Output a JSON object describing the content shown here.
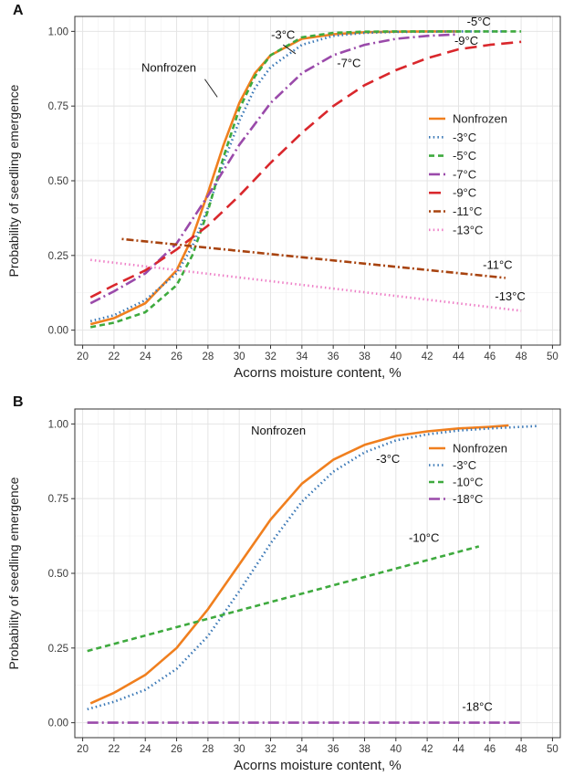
{
  "chart_data": [
    {
      "panel_label": "A",
      "type": "line",
      "xlabel": "Acorns moisture content, %",
      "ylabel": "Probability of seedling emergence",
      "xlim": [
        19.5,
        50.5
      ],
      "ylim": [
        -0.05,
        1.05
      ],
      "xticks": [
        20,
        22,
        24,
        26,
        28,
        30,
        32,
        34,
        36,
        38,
        40,
        42,
        44,
        46,
        48,
        50
      ],
      "yticks": [
        0.0,
        0.25,
        0.5,
        0.75,
        1.0
      ],
      "ytick_labels": [
        "0.00",
        "0.25",
        "0.50",
        "0.75",
        "1.00"
      ],
      "grid": true,
      "legend_position": "right",
      "series": [
        {
          "name": "Nonfrozen",
          "color": "#f07f1e",
          "dash": "solid",
          "x": [
            20.5,
            22,
            24,
            26,
            27,
            28,
            29,
            30,
            31,
            32,
            34,
            36,
            38,
            40,
            42,
            44
          ],
          "y": [
            0.02,
            0.04,
            0.09,
            0.2,
            0.31,
            0.46,
            0.62,
            0.76,
            0.86,
            0.92,
            0.975,
            0.99,
            0.997,
            0.999,
            1.0,
            1.0
          ]
        },
        {
          "name": "-3°C",
          "color": "#3a78b6",
          "dash": "dotted",
          "x": [
            20.5,
            22,
            24,
            26,
            27,
            28,
            29,
            30,
            31,
            32,
            34,
            36,
            38,
            40,
            42,
            44,
            46,
            47
          ],
          "y": [
            0.03,
            0.05,
            0.1,
            0.19,
            0.28,
            0.41,
            0.56,
            0.7,
            0.81,
            0.88,
            0.955,
            0.985,
            0.995,
            0.998,
            0.999,
            1.0,
            1.0,
            1.0
          ]
        },
        {
          "name": "-5°C",
          "color": "#3eaa3e",
          "dash": "dashed",
          "x": [
            20.5,
            22,
            24,
            26,
            27,
            28,
            29,
            30,
            31,
            32,
            34,
            36,
            38,
            40,
            42,
            44,
            46,
            48
          ],
          "y": [
            0.01,
            0.025,
            0.06,
            0.15,
            0.25,
            0.4,
            0.58,
            0.74,
            0.85,
            0.92,
            0.98,
            0.995,
            0.999,
            1.0,
            1.0,
            1.0,
            1.0,
            1.0
          ]
        },
        {
          "name": "-7°C",
          "color": "#9a4aaa",
          "dash": "dashdot",
          "x": [
            20.5,
            22,
            24,
            26,
            28,
            30,
            32,
            34,
            36,
            38,
            40,
            42,
            44
          ],
          "y": [
            0.09,
            0.13,
            0.19,
            0.29,
            0.45,
            0.62,
            0.76,
            0.86,
            0.92,
            0.955,
            0.975,
            0.985,
            0.99
          ]
        },
        {
          "name": "-9°C",
          "color": "#d9272c",
          "dash": "longdash",
          "x": [
            20.5,
            22,
            24,
            26,
            28,
            30,
            32,
            34,
            36,
            38,
            40,
            42,
            44,
            46,
            48
          ],
          "y": [
            0.11,
            0.15,
            0.2,
            0.27,
            0.35,
            0.45,
            0.56,
            0.66,
            0.75,
            0.82,
            0.87,
            0.91,
            0.94,
            0.955,
            0.965
          ]
        },
        {
          "name": "-11°C",
          "color": "#a8430f",
          "dash": "dotdash",
          "x": [
            22.5,
            47
          ],
          "y": [
            0.305,
            0.175
          ]
        },
        {
          "name": "-13°C",
          "color": "#ee7fc7",
          "dash": "dotted",
          "x": [
            20.5,
            48
          ],
          "y": [
            0.235,
            0.065
          ]
        }
      ],
      "annotations": [
        {
          "text": "-3°C",
          "x": 32.8,
          "y": 0.975
        },
        {
          "text": "-5°C",
          "x": 45.3,
          "y": 1.02
        },
        {
          "text": "-9°C",
          "x": 44.5,
          "y": 0.955
        },
        {
          "text": "-7°C",
          "x": 37.0,
          "y": 0.88
        },
        {
          "text": "Nonfrozen",
          "x": 25.5,
          "y": 0.865
        },
        {
          "text": "-11°C",
          "x": 46.5,
          "y": 0.205
        },
        {
          "text": "-13°C",
          "x": 47.3,
          "y": 0.1
        }
      ]
    },
    {
      "panel_label": "B",
      "type": "line",
      "xlabel": "Acorns moisture content, %",
      "ylabel": "Probability of seedling emergence",
      "xlim": [
        19.5,
        50.5
      ],
      "ylim": [
        -0.05,
        1.05
      ],
      "xticks": [
        20,
        22,
        24,
        26,
        28,
        30,
        32,
        34,
        36,
        38,
        40,
        42,
        44,
        46,
        48,
        50
      ],
      "yticks": [
        0.0,
        0.25,
        0.5,
        0.75,
        1.0
      ],
      "ytick_labels": [
        "0.00",
        "0.25",
        "0.50",
        "0.75",
        "1.00"
      ],
      "grid": true,
      "legend_position": "right",
      "series": [
        {
          "name": "Nonfrozen",
          "color": "#f07f1e",
          "dash": "solid",
          "x": [
            20.5,
            22,
            24,
            26,
            28,
            30,
            32,
            34,
            36,
            38,
            40,
            42,
            44,
            46,
            47.2
          ],
          "y": [
            0.065,
            0.1,
            0.16,
            0.25,
            0.38,
            0.53,
            0.68,
            0.8,
            0.88,
            0.93,
            0.96,
            0.975,
            0.985,
            0.99,
            0.995
          ]
        },
        {
          "name": "-3°C",
          "color": "#3a78b6",
          "dash": "dotted",
          "x": [
            20.3,
            22,
            24,
            26,
            28,
            30,
            32,
            34,
            36,
            38,
            40,
            42,
            44,
            46,
            49
          ],
          "y": [
            0.045,
            0.07,
            0.11,
            0.18,
            0.29,
            0.44,
            0.6,
            0.74,
            0.84,
            0.905,
            0.945,
            0.965,
            0.978,
            0.985,
            0.993
          ]
        },
        {
          "name": "-10°C",
          "color": "#3eaa3e",
          "dash": "dashed",
          "x": [
            20.3,
            45.3
          ],
          "y": [
            0.24,
            0.59
          ]
        },
        {
          "name": "-18°C",
          "color": "#9a4aaa",
          "dash": "dashdot",
          "x": [
            20.3,
            48
          ],
          "y": [
            0.0,
            0.0
          ]
        }
      ],
      "annotations": [
        {
          "text": "Nonfrozen",
          "x": 32.5,
          "y": 0.965
        },
        {
          "text": "-3°C",
          "x": 39.5,
          "y": 0.87
        },
        {
          "text": "-10°C",
          "x": 41.8,
          "y": 0.605
        },
        {
          "text": "-18°C",
          "x": 45.2,
          "y": 0.04
        }
      ]
    }
  ]
}
